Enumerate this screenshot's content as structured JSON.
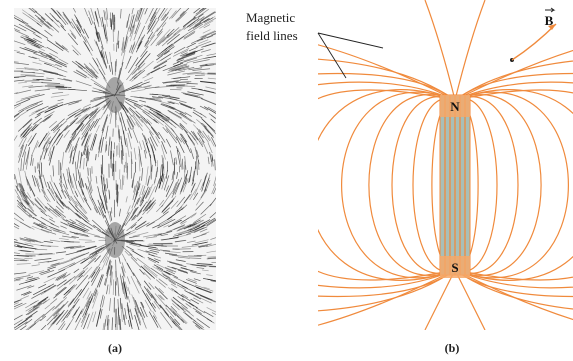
{
  "annotation": {
    "line1": "Magnetic",
    "line2": "field lines"
  },
  "vector": "B",
  "poles": {
    "north": "N",
    "south": "S"
  },
  "captions": [
    "(a)",
    "(b)"
  ]
}
